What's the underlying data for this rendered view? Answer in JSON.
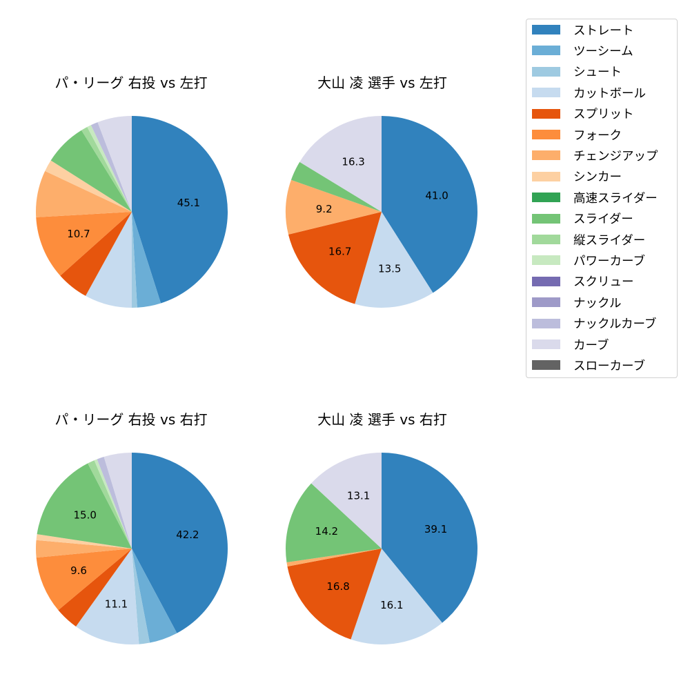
{
  "legend": {
    "items": [
      {
        "label": "ストレート",
        "color": "#3182bd"
      },
      {
        "label": "ツーシーム",
        "color": "#6baed6"
      },
      {
        "label": "シュート",
        "color": "#9ecae1"
      },
      {
        "label": "カットボール",
        "color": "#c6dbef"
      },
      {
        "label": "スプリット",
        "color": "#e6550d"
      },
      {
        "label": "フォーク",
        "color": "#fd8d3c"
      },
      {
        "label": "チェンジアップ",
        "color": "#fdae6b"
      },
      {
        "label": "シンカー",
        "color": "#fdd0a2"
      },
      {
        "label": "高速スライダー",
        "color": "#31a354"
      },
      {
        "label": "スライダー",
        "color": "#74c476"
      },
      {
        "label": "縦スライダー",
        "color": "#a1d99b"
      },
      {
        "label": "パワーカーブ",
        "color": "#c7e9c0"
      },
      {
        "label": "スクリュー",
        "color": "#756bb1"
      },
      {
        "label": "ナックル",
        "color": "#9e9ac8"
      },
      {
        "label": "ナックルカーブ",
        "color": "#bcbddc"
      },
      {
        "label": "カーブ",
        "color": "#dadaeb"
      },
      {
        "label": "スローカーブ",
        "color": "#636363"
      }
    ]
  },
  "chart_data": [
    {
      "type": "pie",
      "title": "パ・リーグ 右投 vs 左打",
      "label_threshold": 9,
      "slices": [
        {
          "label": "ストレート",
          "value": 45.1
        },
        {
          "label": "ツーシーム",
          "value": 4.0
        },
        {
          "label": "シュート",
          "value": 0.9
        },
        {
          "label": "カットボール",
          "value": 8.0
        },
        {
          "label": "スプリット",
          "value": 5.4
        },
        {
          "label": "フォーク",
          "value": 10.7
        },
        {
          "label": "チェンジアップ",
          "value": 7.9
        },
        {
          "label": "シンカー",
          "value": 2.0
        },
        {
          "label": "スライダー",
          "value": 7.2
        },
        {
          "label": "縦スライダー",
          "value": 1.1
        },
        {
          "label": "パワーカーブ",
          "value": 0.7
        },
        {
          "label": "ナックルカーブ",
          "value": 1.2
        },
        {
          "label": "カーブ",
          "value": 5.8
        }
      ]
    },
    {
      "type": "pie",
      "title": "大山 凌 選手 vs 左打",
      "label_threshold": 9,
      "slices": [
        {
          "label": "ストレート",
          "value": 41.0
        },
        {
          "label": "カットボール",
          "value": 13.5
        },
        {
          "label": "スプリット",
          "value": 16.7
        },
        {
          "label": "チェンジアップ",
          "value": 9.2
        },
        {
          "label": "スライダー",
          "value": 3.3
        },
        {
          "label": "カーブ",
          "value": 16.3
        }
      ]
    },
    {
      "type": "pie",
      "title": "パ・リーグ 右投 vs 右打",
      "label_threshold": 9,
      "slices": [
        {
          "label": "ストレート",
          "value": 42.2
        },
        {
          "label": "ツーシーム",
          "value": 4.8
        },
        {
          "label": "シュート",
          "value": 1.8
        },
        {
          "label": "カットボール",
          "value": 11.1
        },
        {
          "label": "スプリット",
          "value": 4.0
        },
        {
          "label": "フォーク",
          "value": 9.6
        },
        {
          "label": "チェンジアップ",
          "value": 2.9
        },
        {
          "label": "シンカー",
          "value": 1.0
        },
        {
          "label": "スライダー",
          "value": 15.0
        },
        {
          "label": "縦スライダー",
          "value": 1.2
        },
        {
          "label": "パワーカーブ",
          "value": 0.5
        },
        {
          "label": "ナックルカーブ",
          "value": 1.2
        },
        {
          "label": "カーブ",
          "value": 4.7
        }
      ]
    },
    {
      "type": "pie",
      "title": "大山 凌 選手 vs 右打",
      "label_threshold": 9,
      "slices": [
        {
          "label": "ストレート",
          "value": 39.1
        },
        {
          "label": "カットボール",
          "value": 16.1
        },
        {
          "label": "スプリット",
          "value": 16.8
        },
        {
          "label": "チェンジアップ",
          "value": 0.7
        },
        {
          "label": "スライダー",
          "value": 14.2
        },
        {
          "label": "カーブ",
          "value": 13.1
        }
      ]
    }
  ]
}
